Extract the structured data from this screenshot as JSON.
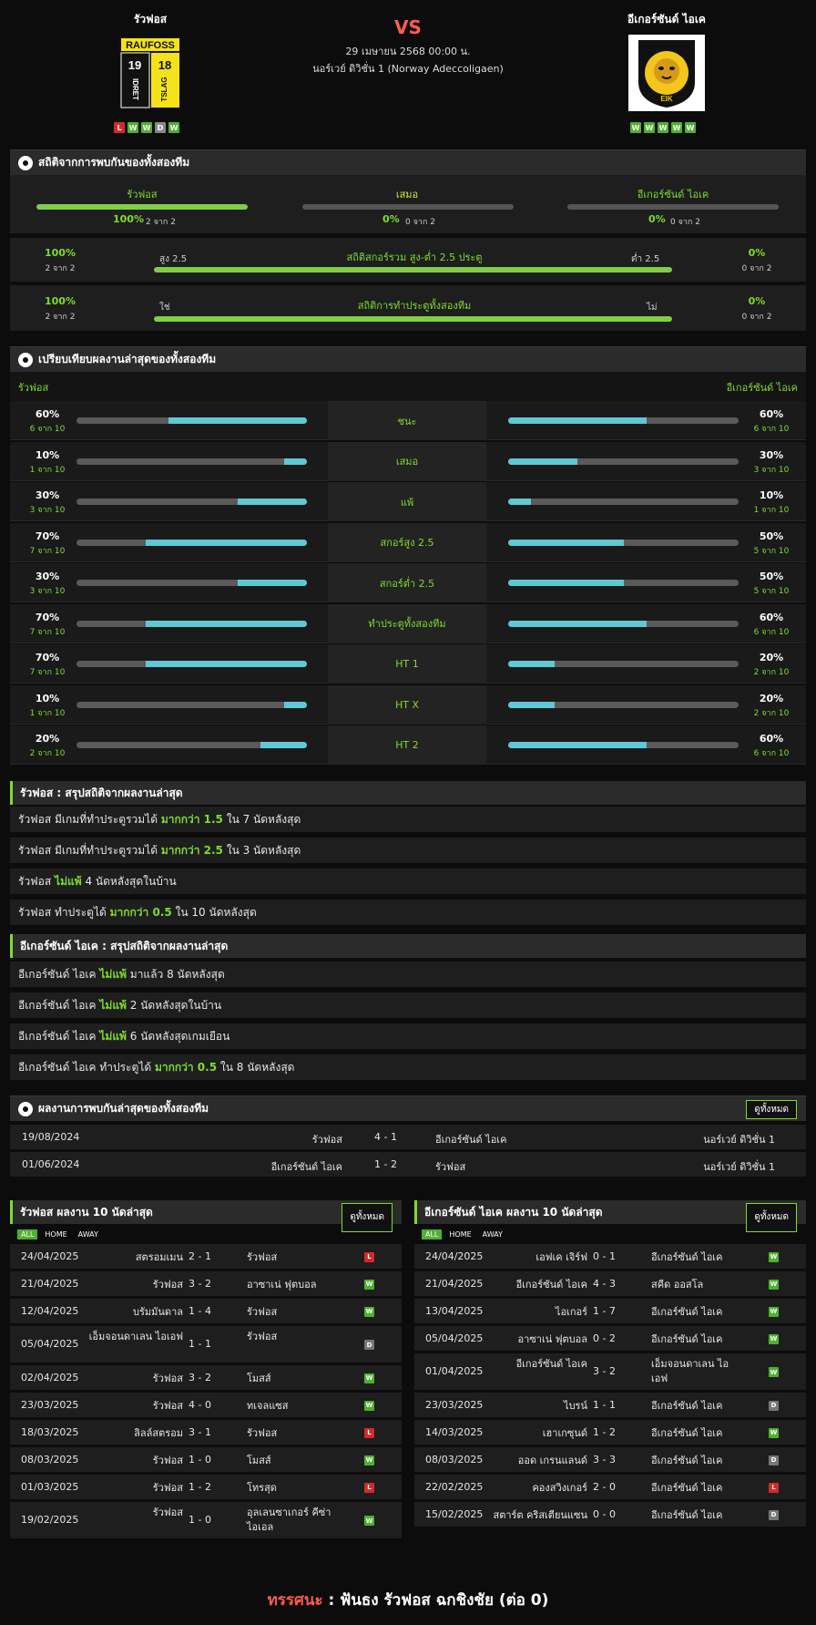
{
  "header": {
    "home": "รัวฟอส",
    "away": "อีเกอร์ซันด์ ไอเค",
    "vs": "VS",
    "date": "29 เมษายน 2568 00:00 น.",
    "league": "นอร์เวย์ ดิวิชั่น 1 (Norway Adeccoligaen)",
    "home_logo_top": "RAUFOSS",
    "home_logo_19": "19",
    "home_logo_18": "18",
    "home_logo_bl": "IDRET",
    "home_logo_br": "TSLAG",
    "away_logo_text": "EIK",
    "home_form": [
      "L",
      "W",
      "W",
      "D",
      "W"
    ],
    "away_form": [
      "W",
      "W",
      "W",
      "W",
      "W"
    ]
  },
  "h2h_stats": {
    "title": "สถิติจากการพบกันของทั้งสองทีม",
    "home_label": "รัวฟอส",
    "draw_label": "เสมอ",
    "away_label": "อีเกอร์ซันด์ ไอเค",
    "home_pct": "100%",
    "home_of": "2 จาก 2",
    "draw_pct": "0%",
    "draw_of": "0 จาก 2",
    "away_pct": "0%",
    "away_of": "0 จาก 2",
    "home_frac": 1.0,
    "draw_frac": 0,
    "away_frac": 0,
    "ou_title": "สถิติสกอร์รวม สูง-ต่ำ 2.5 ประตู",
    "ou_left": "สูง 2.5",
    "ou_right": "ต่ำ 2.5",
    "ou_lp": "100%",
    "ou_lo": "2 จาก 2",
    "ou_rp": "0%",
    "ou_ro": "0 จาก 2",
    "ou_frac": 1.0,
    "bt_title": "สถิติการทำประตูทั้งสองทีม",
    "bt_left": "ใช่",
    "bt_right": "ไม่",
    "bt_lp": "100%",
    "bt_lo": "2 จาก 2",
    "bt_rp": "0%",
    "bt_ro": "0 จาก 2",
    "bt_frac": 1.0
  },
  "compare": {
    "title": "เปรียบเทียบผลงานล่าสุดของทั้งสองทีม",
    "home": "รัวฟอส",
    "away": "อีเกอร์ซันด์ ไอเค",
    "rows": [
      {
        "label": "ชนะ",
        "hp": "60%",
        "hc": "6 จาก 10",
        "hv": 0.6,
        "ap": "60%",
        "ac": "6 จาก 10",
        "av": 0.6
      },
      {
        "label": "เสมอ",
        "hp": "10%",
        "hc": "1 จาก 10",
        "hv": 0.1,
        "ap": "30%",
        "ac": "3 จาก 10",
        "av": 0.3
      },
      {
        "label": "แพ้",
        "hp": "30%",
        "hc": "3 จาก 10",
        "hv": 0.3,
        "ap": "10%",
        "ac": "1 จาก 10",
        "av": 0.1
      },
      {
        "label": "สกอร์สูง 2.5",
        "hp": "70%",
        "hc": "7 จาก 10",
        "hv": 0.7,
        "ap": "50%",
        "ac": "5 จาก 10",
        "av": 0.5
      },
      {
        "label": "สกอร์ต่ำ 2.5",
        "hp": "30%",
        "hc": "3 จาก 10",
        "hv": 0.3,
        "ap": "50%",
        "ac": "5 จาก 10",
        "av": 0.5
      },
      {
        "label": "ทำประตูทั้งสองทีม",
        "hp": "70%",
        "hc": "7 จาก 10",
        "hv": 0.7,
        "ap": "60%",
        "ac": "6 จาก 10",
        "av": 0.6
      },
      {
        "label": "HT 1",
        "hp": "70%",
        "hc": "7 จาก 10",
        "hv": 0.7,
        "ap": "20%",
        "ac": "2 จาก 10",
        "av": 0.2
      },
      {
        "label": "HT X",
        "hp": "10%",
        "hc": "1 จาก 10",
        "hv": 0.1,
        "ap": "20%",
        "ac": "2 จาก 10",
        "av": 0.2
      },
      {
        "label": "HT 2",
        "hp": "20%",
        "hc": "2 จาก 10",
        "hv": 0.2,
        "ap": "60%",
        "ac": "6 จาก 10",
        "av": 0.6
      }
    ]
  },
  "summary_home": {
    "title": "รัวฟอส : สรุปสถิติจากผลงานล่าสุด",
    "rows": [
      [
        "รัวฟอส มีเกมที่ทำประตูรวมได้ ",
        "มากกว่า 1.5",
        " ใน 7 นัดหลังสุด"
      ],
      [
        "รัวฟอส มีเกมที่ทำประตูรวมได้ ",
        "มากกว่า 2.5",
        " ใน 3 นัดหลังสุด"
      ],
      [
        "รัวฟอส ",
        "ไม่แพ้",
        " 4 นัดหลังสุดในบ้าน"
      ],
      [
        "รัวฟอส ทำประตูได้ ",
        "มากกว่า 0.5",
        " ใน 10 นัดหลังสุด"
      ]
    ]
  },
  "summary_away": {
    "title": "อีเกอร์ซันด์ ไอเค : สรุปสถิติจากผลงานล่าสุด",
    "rows": [
      [
        "อีเกอร์ซันด์ ไอเค ",
        "ไม่แพ้",
        " มาแล้ว 8 นัดหลังสุด"
      ],
      [
        "อีเกอร์ซันด์ ไอเค ",
        "ไม่แพ้",
        " 2 นัดหลังสุดในบ้าน"
      ],
      [
        "อีเกอร์ซันด์ ไอเค ",
        "ไม่แพ้",
        " 6 นัดหลังสุดเกมเยือน"
      ],
      [
        "อีเกอร์ซันด์ ไอเค ทำประตูได้ ",
        "มากกว่า 0.5",
        " ใน 8 นัดหลังสุด"
      ]
    ]
  },
  "h2h_results": {
    "title": "ผลงานการพบกันล่าสุดของทั้งสองทีม",
    "view_all": "ดูทั้งหมด",
    "rows": [
      {
        "date": "19/08/2024",
        "home": "รัวฟอส",
        "score": "4 - 1",
        "away": "อีเกอร์ซันด์ ไอเค",
        "league": "นอร์เวย์ ดิวิชั่น 1"
      },
      {
        "date": "01/06/2024",
        "home": "อีเกอร์ซันด์ ไอเค",
        "score": "1 - 2",
        "away": "รัวฟอส",
        "league": "นอร์เวย์ ดิวิชั่น 1"
      }
    ]
  },
  "last10_home": {
    "title": "รัวฟอส ผลงาน 10 นัดล่าสุด",
    "view_all": "ดูทั้งหมด",
    "tabs": [
      "ALL",
      "HOME",
      "AWAY"
    ],
    "rows": [
      {
        "date": "24/04/2025",
        "home": "สตรอมเมน",
        "score": "2 - 1",
        "away": "รัวฟอส",
        "r": "L"
      },
      {
        "date": "21/04/2025",
        "home": "รัวฟอส",
        "score": "3 - 2",
        "away": "อาซาเน่ ฟุตบอล",
        "r": "W"
      },
      {
        "date": "12/04/2025",
        "home": "บรัมมันดาล",
        "score": "1 - 4",
        "away": "รัวฟอส",
        "r": "W"
      },
      {
        "date": "05/04/2025",
        "home": "เอ็มจอนดาเลน ไอเอฟ",
        "score": "1 - 1",
        "away": "รัวฟอส",
        "r": "D"
      },
      {
        "date": "02/04/2025",
        "home": "รัวฟอส",
        "score": "3 - 2",
        "away": "โมสส์",
        "r": "W"
      },
      {
        "date": "23/03/2025",
        "home": "รัวฟอส",
        "score": "4 - 0",
        "away": "ทเจลแซส",
        "r": "W"
      },
      {
        "date": "18/03/2025",
        "home": "ลิลล์สตรอม",
        "score": "3 - 1",
        "away": "รัวฟอส",
        "r": "L"
      },
      {
        "date": "08/03/2025",
        "home": "รัวฟอส",
        "score": "1 - 0",
        "away": "โมสส์",
        "r": "W"
      },
      {
        "date": "01/03/2025",
        "home": "รัวฟอส",
        "score": "1 - 2",
        "away": "โทรสุด",
        "r": "L"
      },
      {
        "date": "19/02/2025",
        "home": "รัวฟอส",
        "score": "1 - 0",
        "away": "อุลเลนซาเกอร์ คีซ่า ไอเอล",
        "r": "W"
      }
    ]
  },
  "last10_away": {
    "title": "อีเกอร์ซันด์ ไอเค ผลงาน 10 นัดล่าสุด",
    "view_all": "ดูทั้งหมด",
    "tabs": [
      "ALL",
      "HOME",
      "AWAY"
    ],
    "rows": [
      {
        "date": "24/04/2025",
        "home": "เอฟเค เจิร์ฟ",
        "score": "0 - 1",
        "away": "อีเกอร์ซันด์ ไอเค",
        "r": "W"
      },
      {
        "date": "21/04/2025",
        "home": "อีเกอร์ซันด์ ไอเค",
        "score": "4 - 3",
        "away": "สคีด ออสโล",
        "r": "W"
      },
      {
        "date": "13/04/2025",
        "home": "ไอเกอร์",
        "score": "1 - 7",
        "away": "อีเกอร์ซันด์ ไอเค",
        "r": "W"
      },
      {
        "date": "05/04/2025",
        "home": "อาซาเน่ ฟุตบอล",
        "score": "0 - 2",
        "away": "อีเกอร์ซันด์ ไอเค",
        "r": "W"
      },
      {
        "date": "01/04/2025",
        "home": "อีเกอร์ซันด์ ไอเค",
        "score": "3 - 2",
        "away": "เอ็มจอนดาเลน ไอเอฟ",
        "r": "W"
      },
      {
        "date": "23/03/2025",
        "home": "ไบรน์",
        "score": "1 - 1",
        "away": "อีเกอร์ซันด์ ไอเค",
        "r": "D"
      },
      {
        "date": "14/03/2025",
        "home": "เฮาเกซุนด์",
        "score": "1 - 2",
        "away": "อีเกอร์ซันด์ ไอเค",
        "r": "W"
      },
      {
        "date": "08/03/2025",
        "home": "ออด เกรนแลนด์",
        "score": "3 - 3",
        "away": "อีเกอร์ซันด์ ไอเค",
        "r": "D"
      },
      {
        "date": "22/02/2025",
        "home": "คองสวิงเกอร์",
        "score": "2 - 0",
        "away": "อีเกอร์ซันด์ ไอเค",
        "r": "L"
      },
      {
        "date": "15/02/2025",
        "home": "สตาร์ต คริสเตียนแซน",
        "score": "0 - 0",
        "away": "อีเกอร์ซันด์ ไอเค",
        "r": "D"
      }
    ]
  },
  "prediction": {
    "label": "ทรรศนะ",
    "sep": " : ",
    "text": "ฟันธง รัวฟอส ฉกชิงชัย (ต่อ 0)"
  }
}
